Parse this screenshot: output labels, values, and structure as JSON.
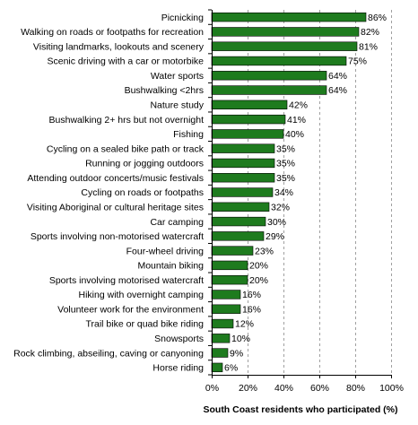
{
  "chart_data": {
    "type": "bar",
    "orientation": "horizontal",
    "categories": [
      "Picnicking",
      "Walking on roads or footpaths for recreation",
      "Visiting landmarks, lookouts and scenery",
      "Scenic driving with a car or motorbike",
      "Water sports",
      "Bushwalking <2hrs",
      "Nature study",
      "Bushwalking 2+ hrs but not overnight",
      "Fishing",
      "Cycling on a sealed bike path or track",
      "Running or jogging outdoors",
      "Attending outdoor concerts/music festivals",
      "Cycling on roads or footpaths",
      "Visiting Aboriginal or cultural heritage sites",
      "Car camping",
      "Sports involving non-motorised watercraft",
      "Four-wheel driving",
      "Mountain biking",
      "Sports involving motorised watercraft",
      "Hiking with overnight camping",
      "Volunteer work for the environment",
      "Trail bike or quad bike riding",
      "Snowsports",
      "Rock climbing, abseiling, caving or canyoning",
      "Horse riding"
    ],
    "values": [
      86,
      82,
      81,
      75,
      64,
      64,
      42,
      41,
      40,
      35,
      35,
      35,
      34,
      32,
      30,
      29,
      23,
      20,
      20,
      16,
      16,
      12,
      10,
      9,
      6
    ],
    "data_labels": [
      "86%",
      "82%",
      "81%",
      "75%",
      "64%",
      "64%",
      "42%",
      "41%",
      "40%",
      "35%",
      "35%",
      "35%",
      "34%",
      "32%",
      "30%",
      "29%",
      "23%",
      "20%",
      "20%",
      "16%",
      "16%",
      "12%",
      "10%",
      "9%",
      "6%"
    ],
    "xlabel": "South Coast residents who participated (%)",
    "ylabel": "",
    "xlim": [
      0,
      100
    ],
    "x_ticks": [
      0,
      20,
      40,
      60,
      80,
      100
    ],
    "x_tick_labels": [
      "0%",
      "20%",
      "40%",
      "60%",
      "80%",
      "100%"
    ],
    "grid": "vertical dashed",
    "legend": "none",
    "bar_color": "#1e7b1e",
    "bar_edge_color": "#000000",
    "grid_color": "#a0a0a0"
  }
}
